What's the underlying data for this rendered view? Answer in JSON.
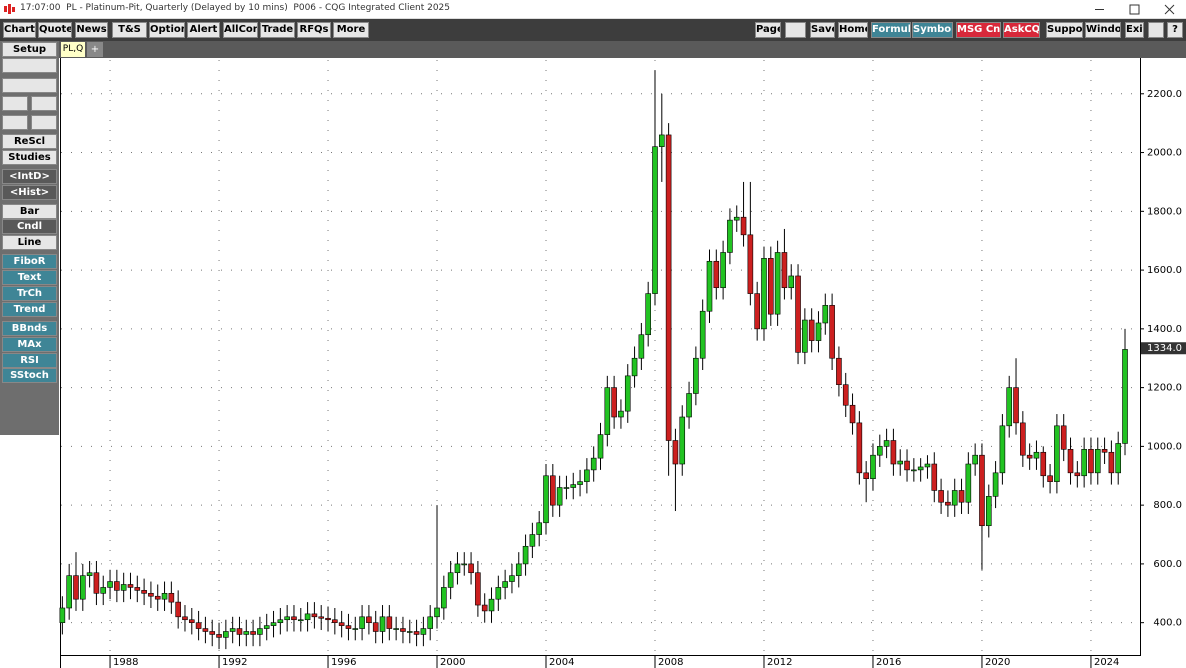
{
  "window_title": "17:07:00  PL - Platinum-Pit, Quarterly (Delayed by 10 mins)  P006 - CQG Integrated Client 2025",
  "toolbar_left": [
    "Chart",
    "Quote",
    "News",
    "T&S",
    "Options",
    "Alert",
    "AllCon",
    "Trade",
    "RFQs",
    "More"
  ],
  "toolbar_right": [
    "Page",
    "Save",
    "Home",
    "Formula",
    "Symbols",
    "MSG Cntr",
    "AskCQG",
    "Support",
    "Window",
    "Exit",
    "?"
  ],
  "tab": "PL,Q",
  "tab_add": "+",
  "sidebar": [
    "Setup",
    "ReScl",
    "Studies",
    "<IntD>",
    "<Hist>",
    "Bar",
    "Cndl",
    "Line",
    "FiboR",
    "Text",
    "TrCh",
    "Trend",
    "BBnds",
    "MAx",
    "RSI",
    "SStoch"
  ],
  "chart_data": {
    "type": "candlestick",
    "up_color": "#22c322",
    "down_color": "#cc1f1f",
    "grid": true,
    "x": [
      1986.25,
      1986.5,
      1986.75,
      1987,
      1987.25,
      1987.5,
      1987.75,
      1988,
      1988.25,
      1988.5,
      1988.75,
      1989,
      1989.25,
      1989.5,
      1989.75,
      1990,
      1990.25,
      1990.5,
      1990.75,
      1991,
      1991.25,
      1991.5,
      1991.75,
      1992,
      1992.25,
      1992.5,
      1992.75,
      1993,
      1993.25,
      1993.5,
      1993.75,
      1994,
      1994.25,
      1994.5,
      1994.75,
      1995,
      1995.25,
      1995.5,
      1995.75,
      1996,
      1996.25,
      1996.5,
      1996.75,
      1997,
      1997.25,
      1997.5,
      1997.75,
      1998,
      1998.25,
      1998.5,
      1998.75,
      1999,
      1999.25,
      1999.5,
      1999.75,
      2000,
      2000.25,
      2000.5,
      2000.75,
      2001,
      2001.25,
      2001.5,
      2001.75,
      2002,
      2002.25,
      2002.5,
      2002.75,
      2003,
      2003.25,
      2003.5,
      2003.75,
      2004,
      2004.25,
      2004.5,
      2004.75,
      2005,
      2005.25,
      2005.5,
      2005.75,
      2006,
      2006.25,
      2006.5,
      2006.75,
      2007,
      2007.25,
      2007.5,
      2007.75,
      2008,
      2008.25,
      2008.5,
      2008.75,
      2009,
      2009.25,
      2009.5,
      2009.75,
      2010,
      2010.25,
      2010.5,
      2010.75,
      2011,
      2011.25,
      2011.5,
      2011.75,
      2012,
      2012.25,
      2012.5,
      2012.75,
      2013,
      2013.25,
      2013.5,
      2013.75,
      2014,
      2014.25,
      2014.5,
      2014.75,
      2015,
      2015.25,
      2015.5,
      2015.75,
      2016,
      2016.25,
      2016.5,
      2016.75,
      2017,
      2017.25,
      2017.5,
      2017.75,
      2018,
      2018.25,
      2018.5,
      2018.75,
      2019,
      2019.25,
      2019.5,
      2019.75,
      2020,
      2020.25,
      2020.5,
      2020.75,
      2021,
      2021.25,
      2021.5,
      2021.75,
      2022,
      2022.25,
      2022.5,
      2022.75,
      2023,
      2023.25,
      2023.5,
      2023.75,
      2024,
      2024.25,
      2024.5,
      2024.75,
      2025,
      2025.25
    ],
    "open": [
      400,
      450,
      560,
      480,
      560,
      570,
      500,
      520,
      540,
      510,
      530,
      520,
      510,
      500,
      490,
      480,
      500,
      470,
      420,
      410,
      400,
      380,
      370,
      360,
      350,
      370,
      380,
      360,
      370,
      360,
      380,
      390,
      400,
      410,
      420,
      410,
      410,
      430,
      420,
      415,
      410,
      400,
      390,
      380,
      380,
      420,
      400,
      370,
      420,
      380,
      380,
      370,
      370,
      360,
      380,
      420,
      450,
      520,
      570,
      600,
      600,
      570,
      460,
      440,
      480,
      520,
      540,
      560,
      600,
      660,
      700,
      740,
      900,
      800,
      860,
      860,
      870,
      880,
      920,
      960,
      1040,
      1200,
      1100,
      1120,
      1240,
      1300,
      1380,
      1520,
      2020,
      2060,
      1020,
      940,
      1100,
      1180,
      1300,
      1460,
      1630,
      1540,
      1660,
      1770,
      1780,
      1720,
      1520,
      1400,
      1640,
      1450,
      1660,
      1540,
      1580,
      1320,
      1430,
      1360,
      1420,
      1480,
      1300,
      1210,
      1140,
      1080,
      910,
      890,
      970,
      1000,
      1020,
      940,
      950,
      920,
      920,
      930,
      940,
      850,
      810,
      800,
      850,
      810,
      940,
      970,
      730,
      830,
      910,
      1070,
      1200,
      1080,
      970,
      960,
      980,
      900,
      880,
      1070,
      990,
      910,
      900,
      990,
      910,
      990,
      980,
      910,
      1010
    ],
    "high": [
      490,
      600,
      640,
      600,
      610,
      610,
      560,
      580,
      580,
      570,
      570,
      560,
      550,
      540,
      530,
      540,
      540,
      510,
      460,
      450,
      440,
      420,
      410,
      400,
      410,
      420,
      420,
      410,
      410,
      420,
      430,
      440,
      450,
      460,
      460,
      450,
      470,
      470,
      460,
      455,
      450,
      440,
      430,
      420,
      460,
      460,
      440,
      460,
      460,
      420,
      420,
      410,
      410,
      420,
      460,
      800,
      560,
      610,
      640,
      640,
      640,
      610,
      500,
      520,
      560,
      580,
      600,
      640,
      700,
      740,
      780,
      940,
      940,
      900,
      900,
      910,
      920,
      960,
      1000,
      1080,
      1240,
      1240,
      1160,
      1280,
      1340,
      1420,
      1560,
      2280,
      2200,
      2100,
      1060,
      1140,
      1220,
      1340,
      1500,
      1670,
      1670,
      1700,
      1810,
      1820,
      1900,
      1900,
      1560,
      1680,
      1680,
      1700,
      1740,
      1620,
      1620,
      1470,
      1470,
      1460,
      1520,
      1520,
      1340,
      1250,
      1180,
      1120,
      950,
      1010,
      1040,
      1060,
      1060,
      990,
      990,
      960,
      960,
      970,
      980,
      890,
      850,
      890,
      890,
      980,
      1010,
      1010,
      870,
      950,
      1110,
      1240,
      1300,
      1120,
      1010,
      1020,
      1000,
      940,
      1110,
      1110,
      1030,
      950,
      1030,
      1030,
      1030,
      1030,
      1020,
      1050,
      1400
    ],
    "low": [
      360,
      410,
      440,
      440,
      520,
      460,
      460,
      480,
      470,
      470,
      480,
      470,
      460,
      450,
      440,
      440,
      430,
      380,
      370,
      360,
      340,
      330,
      320,
      310,
      310,
      330,
      320,
      320,
      320,
      320,
      340,
      350,
      360,
      370,
      370,
      370,
      370,
      380,
      375,
      370,
      360,
      350,
      340,
      340,
      340,
      360,
      330,
      330,
      340,
      340,
      330,
      330,
      320,
      320,
      340,
      380,
      410,
      480,
      530,
      560,
      530,
      420,
      400,
      400,
      440,
      480,
      500,
      520,
      560,
      620,
      660,
      700,
      760,
      760,
      820,
      820,
      830,
      840,
      880,
      920,
      1000,
      1060,
      1060,
      1080,
      1200,
      1260,
      1340,
      1480,
      1900,
      900,
      780,
      900,
      1060,
      1140,
      1260,
      1420,
      1500,
      1500,
      1620,
      1730,
      1680,
      1480,
      1360,
      1360,
      1410,
      1410,
      1500,
      1500,
      1280,
      1280,
      1320,
      1320,
      1380,
      1260,
      1170,
      1100,
      1040,
      870,
      810,
      850,
      930,
      960,
      900,
      900,
      880,
      880,
      880,
      890,
      810,
      770,
      760,
      760,
      770,
      770,
      900,
      580,
      690,
      790,
      870,
      1030,
      1040,
      930,
      920,
      920,
      860,
      840,
      840,
      950,
      870,
      860,
      860,
      870,
      870,
      940,
      870,
      870,
      970
    ],
    "close": [
      450,
      560,
      480,
      560,
      570,
      500,
      520,
      540,
      510,
      530,
      520,
      510,
      500,
      490,
      480,
      500,
      470,
      420,
      410,
      400,
      380,
      370,
      360,
      350,
      370,
      380,
      360,
      370,
      360,
      380,
      390,
      400,
      410,
      420,
      410,
      410,
      430,
      420,
      415,
      410,
      400,
      390,
      380,
      380,
      420,
      400,
      370,
      420,
      380,
      380,
      370,
      370,
      360,
      380,
      420,
      450,
      520,
      570,
      600,
      600,
      570,
      460,
      440,
      480,
      520,
      540,
      560,
      600,
      660,
      700,
      740,
      900,
      800,
      860,
      860,
      870,
      880,
      920,
      960,
      1040,
      1200,
      1100,
      1120,
      1240,
      1300,
      1380,
      1520,
      2020,
      2060,
      1020,
      940,
      1100,
      1180,
      1300,
      1460,
      1630,
      1540,
      1660,
      1770,
      1780,
      1720,
      1520,
      1400,
      1640,
      1450,
      1660,
      1540,
      1580,
      1320,
      1430,
      1360,
      1420,
      1480,
      1300,
      1210,
      1140,
      1080,
      910,
      890,
      970,
      1000,
      1020,
      940,
      950,
      920,
      920,
      930,
      940,
      850,
      810,
      800,
      850,
      810,
      940,
      970,
      730,
      830,
      910,
      1070,
      1200,
      1080,
      970,
      960,
      980,
      900,
      880,
      1070,
      990,
      910,
      900,
      990,
      910,
      990,
      980,
      910,
      1010,
      1330
    ],
    "xlim": [
      1986.2,
      2025.8
    ],
    "xticks": [
      1988,
      1992,
      1996,
      2000,
      2004,
      2008,
      2012,
      2016,
      2020,
      2024
    ],
    "ylim": [
      290,
      2315
    ],
    "yticks": [
      {
        "value": 400,
        "label": "400.0"
      },
      {
        "value": 600,
        "label": "600.0"
      },
      {
        "value": 800,
        "label": "800.0"
      },
      {
        "value": 1000,
        "label": "1000.0"
      },
      {
        "value": 1200,
        "label": "1200.0"
      },
      {
        "value": 1400,
        "label": "1400.0"
      },
      {
        "value": 1600,
        "label": "1600.0"
      },
      {
        "value": 1800,
        "label": "1800.0"
      },
      {
        "value": 2000,
        "label": "2000.0"
      },
      {
        "value": 2200,
        "label": "2200.0"
      }
    ],
    "last_price": {
      "value": 1334,
      "label": "1334.0"
    }
  }
}
